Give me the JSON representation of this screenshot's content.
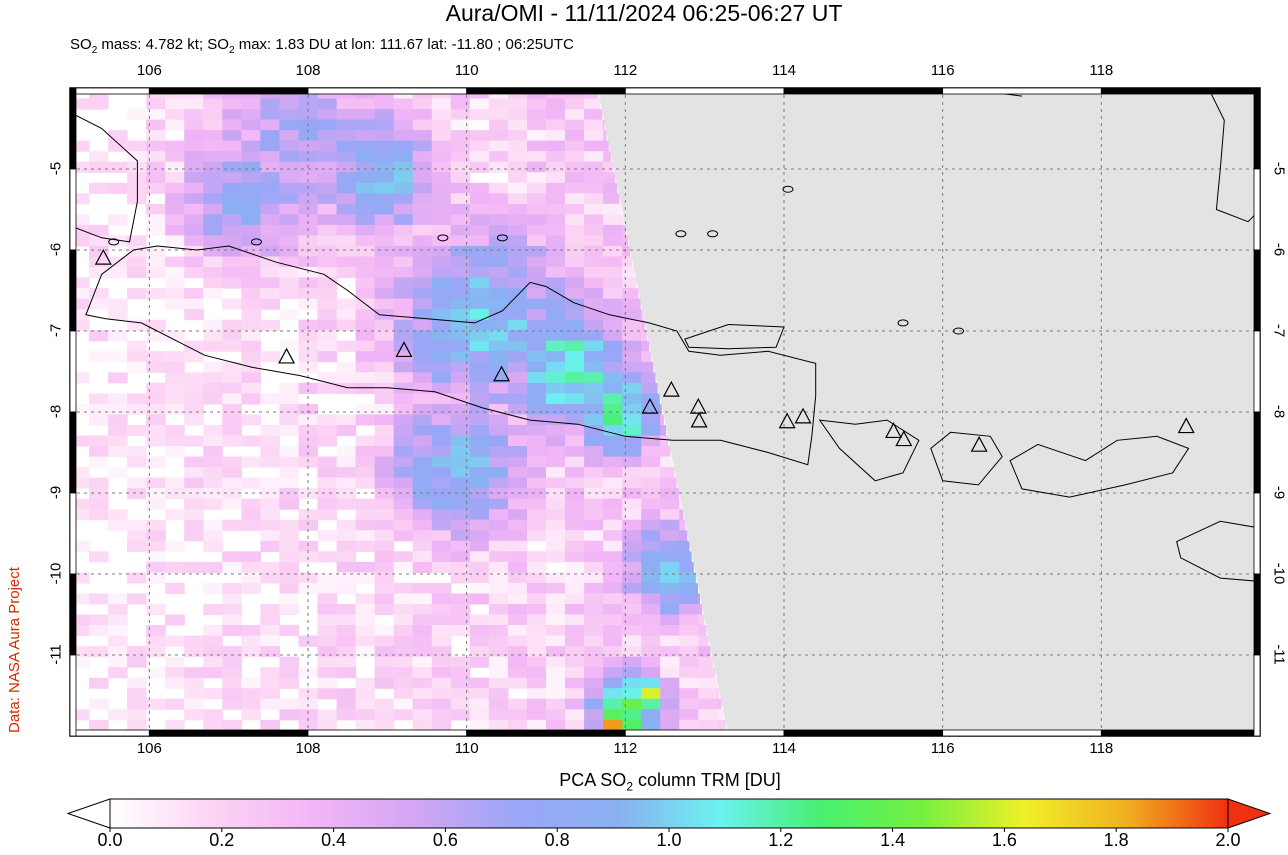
{
  "title": "Aura/OMI - 11/11/2024 06:25-06:27 UT",
  "subtitle_parts": {
    "a": "SO",
    "b": "2",
    "c": " mass: 4.782 kt; SO",
    "d": "2",
    "e": " max: 1.83 DU at lon: 111.67 lat: -11.80 ; 06:25UTC"
  },
  "credit": "Data: NASA Aura Project",
  "colorbar": {
    "title_parts": {
      "a": "PCA SO",
      "b": "2",
      "c": " column TRM [DU]"
    },
    "ticks": [
      "0.0",
      "0.2",
      "0.4",
      "0.6",
      "0.8",
      "1.0",
      "1.2",
      "1.4",
      "1.6",
      "1.8",
      "2.0"
    ],
    "min": 0.0,
    "max": 2.0,
    "colors": [
      "#ffffff",
      "#fcd4f4",
      "#f2b6f6",
      "#d3a6f4",
      "#9aa6f6",
      "#8ab0f2",
      "#6cf2f0",
      "#48f070",
      "#76f040",
      "#f0f028",
      "#f0b020",
      "#f03010"
    ]
  },
  "map": {
    "lon_range": [
      105,
      120
    ],
    "lat_range": [
      -12,
      -4
    ],
    "lon_ticks": [
      "106",
      "108",
      "110",
      "112",
      "114",
      "116",
      "118"
    ],
    "lat_ticks": [
      "-5",
      "-6",
      "-7",
      "-8",
      "-9",
      "-10",
      "-11"
    ],
    "no_data_color": "#e3e3e3",
    "gridlines": true,
    "volcano_icon": "triangle-volcano-icon",
    "volcanoes": [
      {
        "lon": 105.42,
        "lat": -6.1
      },
      {
        "lon": 107.73,
        "lat": -7.32
      },
      {
        "lon": 109.21,
        "lat": -7.24
      },
      {
        "lon": 110.44,
        "lat": -7.54
      },
      {
        "lon": 112.31,
        "lat": -7.94
      },
      {
        "lon": 112.58,
        "lat": -7.73
      },
      {
        "lon": 112.92,
        "lat": -7.94
      },
      {
        "lon": 112.93,
        "lat": -8.11
      },
      {
        "lon": 114.04,
        "lat": -8.12
      },
      {
        "lon": 114.24,
        "lat": -8.06
      },
      {
        "lon": 115.38,
        "lat": -8.24
      },
      {
        "lon": 115.51,
        "lat": -8.34
      },
      {
        "lon": 116.46,
        "lat": -8.41
      },
      {
        "lon": 119.07,
        "lat": -8.18
      }
    ],
    "so2_hotspots": [
      {
        "lon": 107.8,
        "lat": -4.7,
        "du": 0.65,
        "r": 1.4
      },
      {
        "lon": 108.8,
        "lat": -5.0,
        "du": 0.9,
        "r": 0.9
      },
      {
        "lon": 107.1,
        "lat": -5.3,
        "du": 0.8,
        "r": 0.9
      },
      {
        "lon": 110.1,
        "lat": -6.8,
        "du": 0.95,
        "r": 1.3
      },
      {
        "lon": 111.2,
        "lat": -7.4,
        "du": 1.15,
        "r": 0.9
      },
      {
        "lon": 111.8,
        "lat": -7.9,
        "du": 1.2,
        "r": 0.7
      },
      {
        "lon": 109.8,
        "lat": -8.6,
        "du": 0.9,
        "r": 1.0
      },
      {
        "lon": 112.5,
        "lat": -9.9,
        "du": 0.95,
        "r": 0.7
      },
      {
        "lon": 111.9,
        "lat": -11.6,
        "du": 1.4,
        "r": 0.5
      },
      {
        "lon": 112.2,
        "lat": -11.45,
        "du": 1.55,
        "r": 0.25
      },
      {
        "lon": 111.67,
        "lat": -11.8,
        "du": 1.83,
        "r": 0.18
      }
    ]
  }
}
